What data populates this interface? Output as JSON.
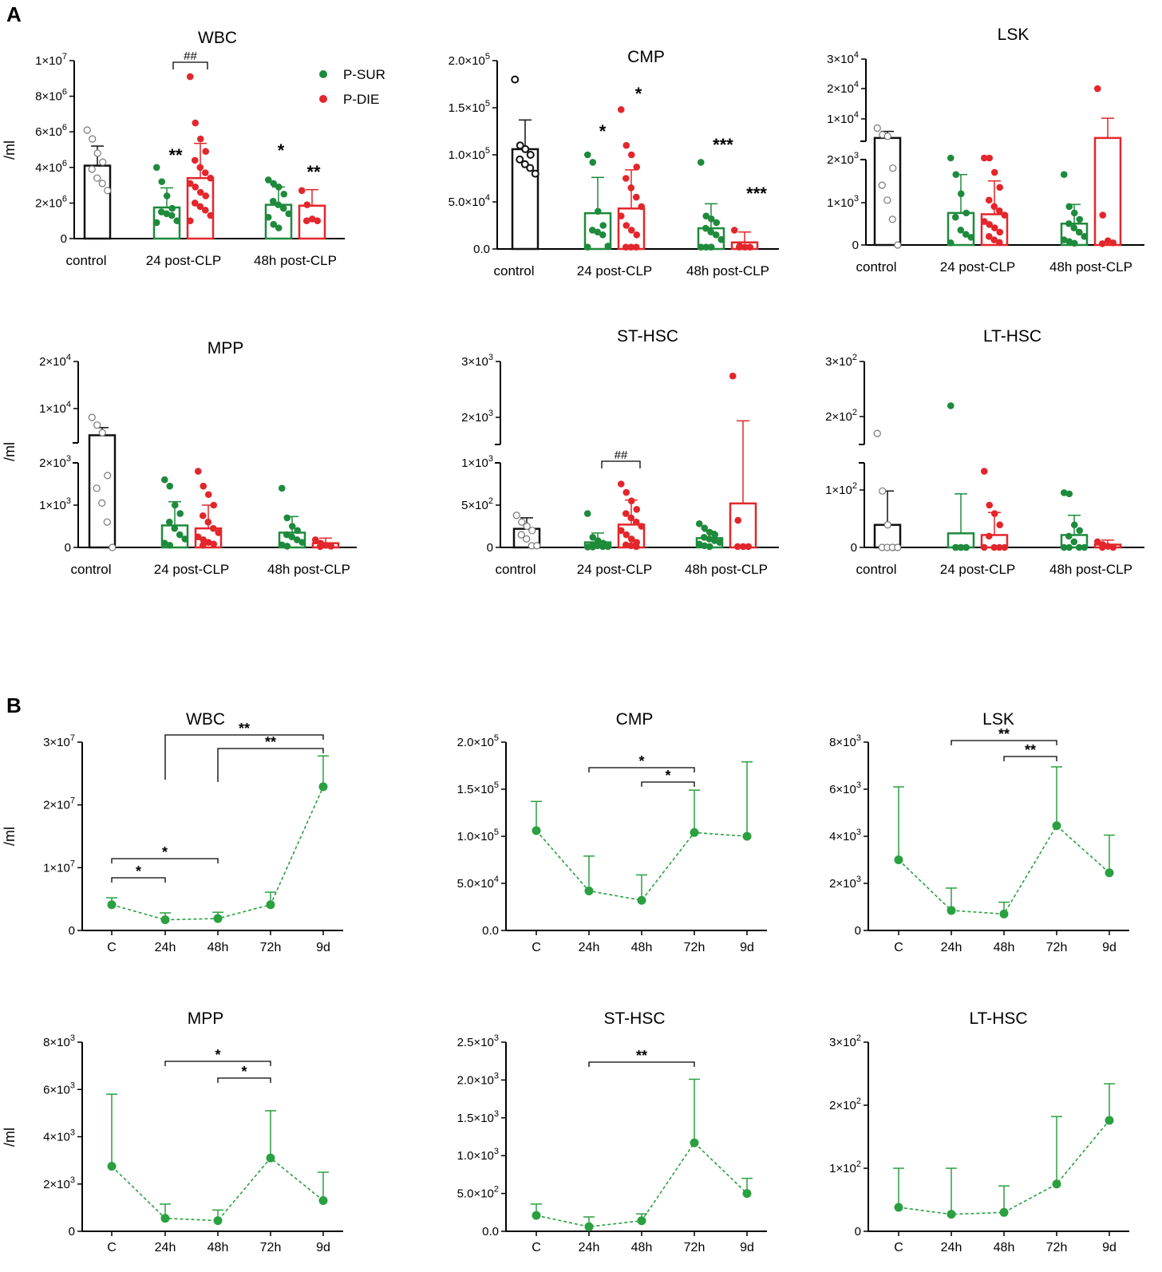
{
  "figure": {
    "panel_labels": [
      "A",
      "B"
    ],
    "ylabel": "/ml",
    "colors": {
      "control": "#111111",
      "sur": "#1e8a3c",
      "die": "#e3262b",
      "line": "#2aa040",
      "axis": "#000000"
    },
    "legend": [
      {
        "label": "P-SUR",
        "color": "#1e8a3c"
      },
      {
        "label": "P-DIE",
        "color": "#e3262b"
      }
    ]
  },
  "chart_data": [
    {
      "id": "A-WBC",
      "type": "bar",
      "title": "WBC",
      "groups": [
        "control",
        "24 post-CLP",
        "48h post-CLP"
      ],
      "ticks": [
        "0",
        "2×10^6",
        "4×10^6",
        "6×10^6",
        "8×10^6",
        "1×10^7"
      ],
      "ylim": [
        0,
        10000000
      ],
      "bars": [
        {
          "group": "control",
          "series": "control",
          "mean": 4100000,
          "sd": 1100000,
          "points": [
            6100000,
            5600000,
            4800000,
            4300000,
            3900000,
            3400000,
            3100000,
            2700000
          ]
        },
        {
          "group": "24 post-CLP",
          "series": "P-SUR",
          "mean": 1750000,
          "sd": 1100000,
          "points": [
            4000000,
            3200000,
            2400000,
            1700000,
            1500000,
            1400000,
            1300000,
            1000000,
            900000
          ]
        },
        {
          "group": "24 post-CLP",
          "series": "P-DIE",
          "mean": 3400000,
          "sd": 1950000,
          "points": [
            9100000,
            6500000,
            5600000,
            4900000,
            4400000,
            4000000,
            3700000,
            3400000,
            3100000,
            2900000,
            2600000,
            2400000,
            2000000,
            1800000,
            1600000,
            1300000,
            1000000
          ]
        },
        {
          "group": "48h post-CLP",
          "series": "P-SUR",
          "mean": 1900000,
          "sd": 1000000,
          "points": [
            3300000,
            3100000,
            2900000,
            2500000,
            2100000,
            1900000,
            1700000,
            1400000,
            1200000,
            800000,
            600000
          ]
        },
        {
          "group": "48h post-CLP",
          "series": "P-DIE",
          "mean": 1850000,
          "sd": 900000,
          "points": [
            2700000,
            1900000,
            1100000,
            1000000,
            1000000
          ]
        }
      ],
      "annotations": [
        {
          "text": "**",
          "series": "24 P-SUR"
        },
        {
          "text": "*",
          "series": "48h P-SUR"
        },
        {
          "text": "**",
          "series": "48h P-DIE"
        },
        {
          "text": "##",
          "type": "bracket"
        }
      ]
    },
    {
      "id": "A-CMP",
      "type": "bar",
      "title": "CMP",
      "groups": [
        "control",
        "24 post-CLP",
        "48h post-CLP"
      ],
      "ticks": [
        "0.0",
        "5.0×10^4",
        "1.0×10^5",
        "1.5×10^5",
        "2.0×10^5"
      ],
      "ylim": [
        0,
        200000
      ],
      "bars": [
        {
          "group": "control",
          "series": "control",
          "mean": 106000,
          "sd": 31000,
          "points": [
            180000,
            110000,
            106000,
            100000,
            95000,
            90000,
            86000,
            80000
          ]
        },
        {
          "group": "24 post-CLP",
          "series": "P-SUR",
          "mean": 38000,
          "sd": 38000,
          "points": [
            100000,
            92000,
            40000,
            25000,
            20000,
            18000,
            15000,
            3000,
            2000
          ]
        },
        {
          "group": "24 post-CLP",
          "series": "P-DIE",
          "mean": 43000,
          "sd": 41000,
          "points": [
            148000,
            110000,
            100000,
            87000,
            75000,
            65000,
            55000,
            45000,
            35000,
            25000,
            20000,
            15000,
            2000,
            2000,
            2000
          ]
        },
        {
          "group": "48h post-CLP",
          "series": "P-SUR",
          "mean": 22000,
          "sd": 26000,
          "points": [
            92000,
            35000,
            32000,
            28000,
            22000,
            18000,
            15000,
            10000,
            2000,
            2000,
            2000
          ]
        },
        {
          "group": "48h post-CLP",
          "series": "P-DIE",
          "mean": 7000,
          "sd": 11000,
          "points": [
            20000,
            3000,
            2000,
            2000,
            2000
          ]
        }
      ],
      "annotations": [
        {
          "text": "*"
        },
        {
          "text": "*"
        },
        {
          "text": "***"
        },
        {
          "text": "***"
        }
      ]
    },
    {
      "id": "A-LSK",
      "type": "bar",
      "title": "LSK",
      "broken_axis": true,
      "groups": [
        "control",
        "24 post-CLP",
        "48h post-CLP"
      ],
      "ticks": [
        "0",
        "1×10^3",
        "2×10^3",
        "1×10^4",
        "2×10^4",
        "3×10^4"
      ],
      "ylim_lower": [
        0,
        2000
      ],
      "ylim_upper": [
        5000,
        30000
      ],
      "bars": [
        {
          "group": "control",
          "series": "control",
          "mean": 6000,
          "sd": 2000,
          "points": [
            9000,
            7000,
            6500,
            1800,
            1400,
            1050,
            600,
            0
          ]
        },
        {
          "group": "24 post-CLP",
          "series": "P-SUR",
          "mean": 750,
          "sd": 900,
          "points": [
            2400,
            1650,
            1200,
            750,
            650,
            350,
            250,
            180,
            50
          ]
        },
        {
          "group": "24 post-CLP",
          "series": "P-DIE",
          "mean": 720,
          "sd": 780,
          "points": [
            2400,
            2300,
            1700,
            1350,
            1050,
            900,
            800,
            700,
            550,
            480,
            400,
            300,
            200,
            120,
            60
          ]
        },
        {
          "group": "48h post-CLP",
          "series": "P-SUR",
          "mean": 500,
          "sd": 450,
          "points": [
            1650,
            900,
            750,
            600,
            500,
            400,
            300,
            200,
            120,
            80,
            40
          ]
        },
        {
          "group": "48h post-CLP",
          "series": "P-DIE",
          "mean": 6000,
          "sd": 6000,
          "points": [
            21000,
            700,
            100,
            50,
            30
          ]
        }
      ]
    },
    {
      "id": "A-MPP",
      "type": "bar",
      "title": "MPP",
      "broken_axis": true,
      "groups": [
        "control",
        "24 post-CLP",
        "48h post-CLP"
      ],
      "ticks": [
        "0",
        "1×10^3",
        "2×10^3",
        "1×10^4",
        "2×10^4"
      ],
      "ylim_lower": [
        0,
        2000
      ],
      "ylim_upper": [
        4000,
        20000
      ],
      "bars": [
        {
          "group": "control",
          "series": "control",
          "mean": 5500,
          "sd": 1500,
          "points": [
            9000,
            7500,
            6000,
            1700,
            1400,
            1050,
            600,
            0
          ]
        },
        {
          "group": "24 post-CLP",
          "series": "P-SUR",
          "mean": 520,
          "sd": 560,
          "points": [
            1600,
            1450,
            1000,
            800,
            600,
            450,
            300,
            200,
            100,
            50
          ]
        },
        {
          "group": "24 post-CLP",
          "series": "P-DIE",
          "mean": 450,
          "sd": 550,
          "points": [
            1800,
            1450,
            1250,
            1000,
            750,
            600,
            450,
            350,
            250,
            180,
            120,
            80,
            50
          ]
        },
        {
          "group": "48h post-CLP",
          "series": "P-SUR",
          "mean": 350,
          "sd": 380,
          "points": [
            1400,
            700,
            500,
            400,
            300,
            250,
            180,
            120,
            60,
            30
          ]
        },
        {
          "group": "48h post-CLP",
          "series": "P-DIE",
          "mean": 100,
          "sd": 120,
          "points": [
            180,
            100,
            50,
            30,
            20
          ]
        }
      ]
    },
    {
      "id": "A-STHSC",
      "type": "bar",
      "title": "ST-HSC",
      "broken_axis": true,
      "groups": [
        "control",
        "24 post-CLP",
        "48h post-CLP"
      ],
      "ticks": [
        "0",
        "5×10^2",
        "1×10^3",
        "2×10^3",
        "3×10^3"
      ],
      "ylim_lower": [
        0,
        1000
      ],
      "ylim_upper": [
        1000,
        3000
      ],
      "bars": [
        {
          "group": "control",
          "series": "control",
          "mean": 220,
          "sd": 130,
          "points": [
            380,
            300,
            250,
            200,
            150,
            100,
            20,
            20
          ]
        },
        {
          "group": "24 post-CLP",
          "series": "P-SUR",
          "mean": 60,
          "sd": 110,
          "points": [
            400,
            120,
            80,
            50,
            30,
            20,
            10,
            10,
            5,
            5
          ]
        },
        {
          "group": "24 post-CLP",
          "series": "P-DIE",
          "mean": 270,
          "sd": 290,
          "points": [
            750,
            650,
            550,
            450,
            400,
            350,
            300,
            250,
            200,
            150,
            100,
            60,
            30,
            20,
            10
          ]
        },
        {
          "group": "48h post-CLP",
          "series": "P-SUR",
          "mean": 110,
          "sd": 80,
          "points": [
            280,
            230,
            180,
            150,
            120,
            100,
            80,
            60,
            40,
            20,
            10
          ]
        },
        {
          "group": "48h post-CLP",
          "series": "P-DIE",
          "mean": 520,
          "sd": 1050,
          "points": [
            2650,
            320,
            10,
            10,
            10
          ]
        }
      ],
      "annotations": [
        {
          "text": "##",
          "type": "bracket"
        }
      ]
    },
    {
      "id": "A-LTHSC",
      "type": "bar",
      "title": "LT-HSC",
      "broken_axis": true,
      "groups": [
        "control",
        "24 post-CLP",
        "48h post-CLP"
      ],
      "ticks": [
        "0",
        "1×10^2",
        "2×10^2",
        "3×10^2"
      ],
      "ylim_lower": [
        0,
        150
      ],
      "ylim_upper": [
        150,
        300
      ],
      "bars": [
        {
          "group": "control",
          "series": "control",
          "mean": 40,
          "sd": 60,
          "points": [
            170,
            100,
            40,
            0,
            0,
            0,
            0,
            0
          ]
        },
        {
          "group": "24 post-CLP",
          "series": "P-SUR",
          "mean": 25,
          "sd": 70,
          "points": [
            220,
            0,
            0,
            0,
            0,
            0,
            0
          ]
        },
        {
          "group": "24 post-CLP",
          "series": "P-DIE",
          "mean": 22,
          "sd": 40,
          "points": [
            135,
            75,
            60,
            40,
            20,
            0,
            0,
            0,
            0
          ]
        },
        {
          "group": "48h post-CLP",
          "series": "P-SUR",
          "mean": 22,
          "sd": 35,
          "points": [
            97,
            95,
            40,
            30,
            20,
            10,
            0,
            0,
            0,
            0
          ]
        },
        {
          "group": "48h post-CLP",
          "series": "P-DIE",
          "mean": 5,
          "sd": 8,
          "points": [
            10,
            5,
            2,
            0,
            0
          ]
        }
      ]
    },
    {
      "id": "B-WBC",
      "type": "line",
      "title": "WBC",
      "x": [
        "C",
        "24h",
        "48h",
        "72h",
        "9d"
      ],
      "ticks": [
        "0",
        "1×10^7",
        "2×10^7",
        "3×10^7"
      ],
      "ylim": [
        0,
        30000000
      ],
      "y": [
        4100000,
        1700000,
        1900000,
        4100000,
        22900000
      ],
      "sd": [
        1100000,
        1100000,
        1000000,
        2000000,
        4900000
      ],
      "brackets": [
        {
          "from": "C",
          "to": "24h",
          "text": "*"
        },
        {
          "from": "C",
          "to": "48h",
          "text": "*"
        },
        {
          "from": "24h",
          "to": "9d",
          "text": "**"
        },
        {
          "from": "48h",
          "to": "9d",
          "text": "**"
        }
      ]
    },
    {
      "id": "B-CMP",
      "type": "line",
      "title": "CMP",
      "x": [
        "C",
        "24h",
        "48h",
        "72h",
        "9d"
      ],
      "ticks": [
        "0.0",
        "5.0×10^4",
        "1.0×10^5",
        "1.5×10^5",
        "2.0×10^5"
      ],
      "ylim": [
        0,
        200000
      ],
      "y": [
        106000,
        42000,
        32000,
        104000,
        100000
      ],
      "sd": [
        31000,
        37000,
        27000,
        45000,
        79000
      ],
      "brackets": [
        {
          "from": "24h",
          "to": "72h",
          "text": "*"
        },
        {
          "from": "48h",
          "to": "72h",
          "text": "*"
        }
      ]
    },
    {
      "id": "B-LSK",
      "type": "line",
      "title": "LSK",
      "x": [
        "C",
        "24h",
        "48h",
        "72h",
        "9d"
      ],
      "ticks": [
        "0",
        "2×10^3",
        "4×10^3",
        "6×10^3",
        "8×10^3"
      ],
      "ylim": [
        0,
        8000
      ],
      "y": [
        3000,
        850,
        700,
        4450,
        2450
      ],
      "sd": [
        3100,
        950,
        500,
        2500,
        1600
      ],
      "brackets": [
        {
          "from": "24h",
          "to": "72h",
          "text": "**"
        },
        {
          "from": "48h",
          "to": "72h",
          "text": "**"
        }
      ]
    },
    {
      "id": "B-MPP",
      "type": "line",
      "title": "MPP",
      "x": [
        "C",
        "24h",
        "48h",
        "72h",
        "9d"
      ],
      "ticks": [
        "0",
        "2×10^3",
        "4×10^3",
        "6×10^3",
        "8×10^3"
      ],
      "ylim": [
        0,
        8000
      ],
      "y": [
        2750,
        550,
        450,
        3100,
        1300
      ],
      "sd": [
        3050,
        600,
        450,
        2000,
        1200
      ],
      "brackets": [
        {
          "from": "24h",
          "to": "72h",
          "text": "*"
        },
        {
          "from": "48h",
          "to": "72h",
          "text": "*"
        }
      ]
    },
    {
      "id": "B-STHSC",
      "type": "line",
      "title": "ST-HSC",
      "x": [
        "C",
        "24h",
        "48h",
        "72h",
        "9d"
      ],
      "ticks": [
        "0.0",
        "5.0×10^2",
        "1.0×10^3",
        "1.5×10^3",
        "2.0×10^3",
        "2.5×10^3"
      ],
      "ylim": [
        0,
        2500
      ],
      "y": [
        210,
        60,
        140,
        1170,
        500
      ],
      "sd": [
        150,
        130,
        90,
        840,
        200
      ],
      "brackets": [
        {
          "from": "24h",
          "to": "72h",
          "text": "**"
        }
      ]
    },
    {
      "id": "B-LTHSC",
      "type": "line",
      "title": "LT-HSC",
      "x": [
        "C",
        "24h",
        "48h",
        "72h",
        "9d"
      ],
      "ticks": [
        "0",
        "1×10^2",
        "2×10^2",
        "3×10^2"
      ],
      "ylim": [
        0,
        300
      ],
      "y": [
        38,
        27,
        30,
        75,
        176
      ],
      "sd": [
        62,
        73,
        42,
        107,
        58
      ],
      "brackets": []
    }
  ]
}
